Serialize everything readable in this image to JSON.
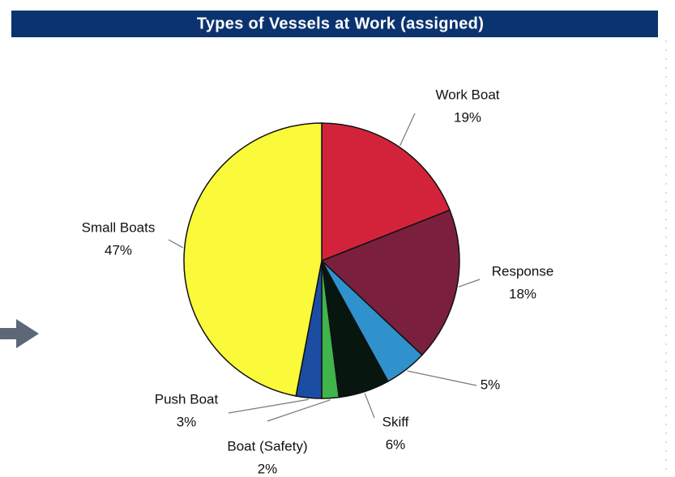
{
  "chart_data": {
    "type": "pie",
    "title": "Types of Vessels at Work (assigned)",
    "categories": [
      "Work Boat",
      "Response",
      null,
      "Skiff",
      "Boat (Safety)",
      "Push Boat",
      "Small Boats"
    ],
    "values": [
      19,
      18,
      5,
      6,
      2,
      3,
      47
    ],
    "value_labels": [
      "19%",
      "18%",
      "5%",
      "6%",
      "2%",
      "3%",
      "47%"
    ],
    "colors": [
      "#d3233b",
      "#7b1f3e",
      "#2f92cc",
      "#07160f",
      "#3fb54c",
      "#1b4ea3",
      "#fafa3a"
    ]
  }
}
